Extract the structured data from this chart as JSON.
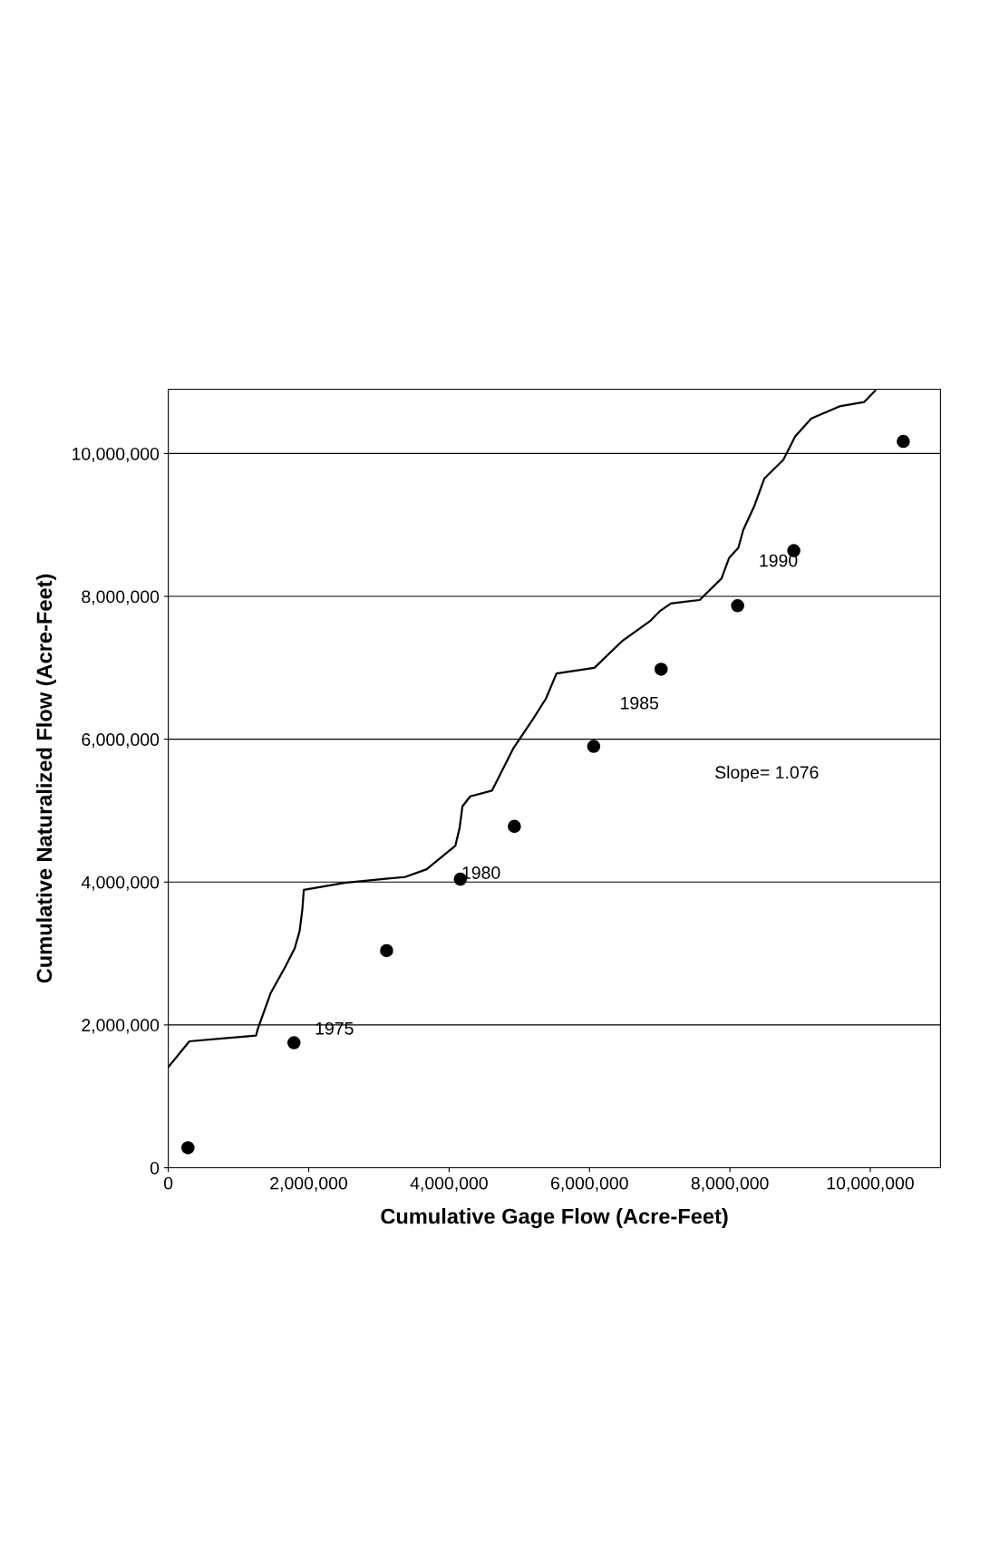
{
  "chart_data": {
    "type": "line",
    "xlabel": "Cumulative Gage Flow (Acre-Feet)",
    "ylabel": "Cumulative Naturalized Flow (Acre-Feet)",
    "xlim": [
      0,
      11000000
    ],
    "ylim": [
      0,
      10900000
    ],
    "xticks": [
      {
        "value": 0,
        "label": "0"
      },
      {
        "value": 2000000,
        "label": "2,000,000"
      },
      {
        "value": 4000000,
        "label": "4,000,000"
      },
      {
        "value": 6000000,
        "label": "6,000,000"
      },
      {
        "value": 8000000,
        "label": "8,000,000"
      },
      {
        "value": 10000000,
        "label": "10,000,000"
      }
    ],
    "yticks": [
      {
        "value": 0,
        "label": "0"
      },
      {
        "value": 2000000,
        "label": "2,000,000"
      },
      {
        "value": 4000000,
        "label": "4,000,000"
      },
      {
        "value": 6000000,
        "label": "6,000,000"
      },
      {
        "value": 8000000,
        "label": "8,000,000"
      },
      {
        "value": 10000000,
        "label": "10,000,000"
      }
    ],
    "grid": "y",
    "legend": false,
    "series": [
      {
        "color": "#000000",
        "marker": "none",
        "line_style": "solid",
        "x": [
          0,
          300000,
          1250000,
          1270000,
          1460000,
          1670000,
          1800000,
          1870000,
          1910000,
          1930000,
          2510000,
          3130000,
          3370000,
          3680000,
          4090000,
          4150000,
          4190000,
          4300000,
          4610000,
          4920000,
          5200000,
          5380000,
          5530000,
          6070000,
          6460000,
          6870000,
          7010000,
          7160000,
          7570000,
          7880000,
          7990000,
          8120000,
          8190000,
          8350000,
          8490000,
          8760000,
          8930000,
          9160000,
          9560000,
          9910000,
          10070000
        ],
        "values": [
          1410000,
          1770000,
          1850000,
          1930000,
          2450000,
          2820000,
          3070000,
          3310000,
          3620000,
          3890000,
          3990000,
          4050000,
          4070000,
          4180000,
          4510000,
          4760000,
          5060000,
          5200000,
          5280000,
          5880000,
          6290000,
          6570000,
          6920000,
          7000000,
          7370000,
          7660000,
          7800000,
          7900000,
          7950000,
          8250000,
          8540000,
          8680000,
          8930000,
          9270000,
          9650000,
          9910000,
          10240000,
          10490000,
          10660000,
          10720000,
          10880000
        ]
      },
      {
        "type": "scatter",
        "color": "#000000",
        "marker": "circle",
        "x": [
          280000,
          1790000,
          3110000,
          4160000,
          4930000,
          6060000,
          7020000,
          8110000,
          8910000,
          10470000
        ],
        "values": [
          280000,
          1750000,
          3040000,
          4040000,
          4780000,
          5900000,
          6980000,
          7870000,
          8640000,
          10170000
        ]
      }
    ],
    "annotations": [
      "1975",
      "1980",
      "1985",
      "1990",
      "Slope= 1.076"
    ]
  }
}
